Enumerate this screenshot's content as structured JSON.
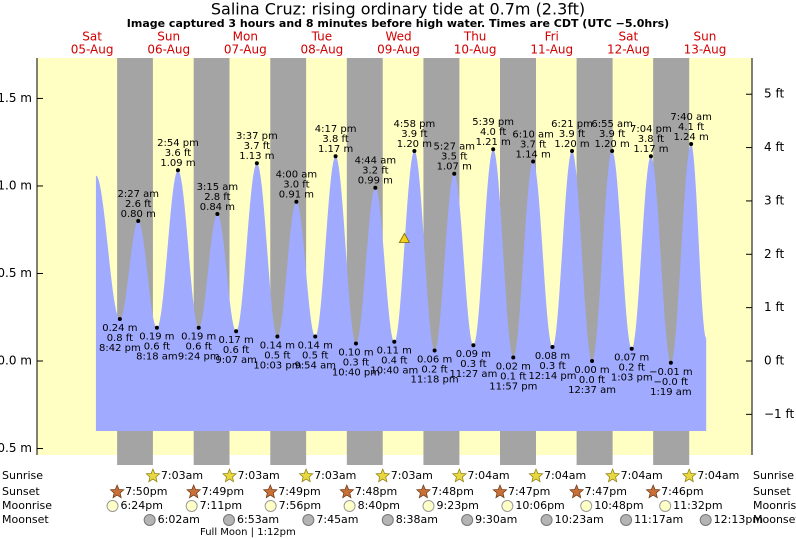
{
  "chart_data": {
    "type": "tide",
    "title": "Salina Cruz: rising  ordinary tide at 0.7m (2.3ft)",
    "subtitle": "Image captured 3 hours and 8 minutes before high water. Times are CDT (UTC −5.0hrs)",
    "days": [
      {
        "weekday": "Sat",
        "date": "05-Aug"
      },
      {
        "weekday": "Sun",
        "date": "06-Aug"
      },
      {
        "weekday": "Mon",
        "date": "07-Aug"
      },
      {
        "weekday": "Tue",
        "date": "08-Aug"
      },
      {
        "weekday": "Wed",
        "date": "09-Aug"
      },
      {
        "weekday": "Thu",
        "date": "10-Aug"
      },
      {
        "weekday": "Fri",
        "date": "11-Aug"
      },
      {
        "weekday": "Sat",
        "date": "12-Aug"
      },
      {
        "weekday": "Sun",
        "date": "13-Aug"
      }
    ],
    "ylim": [
      -0.537,
      1.731
    ],
    "yticks": [
      {
        "value": 1.5,
        "label": "1.5 m"
      },
      {
        "value": 1.0,
        "label": "1.0 m"
      },
      {
        "value": 0.5,
        "label": "0.5 m"
      },
      {
        "value": 0.0,
        "label": "0.0 m"
      },
      {
        "value": -0.5,
        "label": "−0.5 m"
      }
    ],
    "y2lim": [
      -1.762,
      5.679
    ],
    "y2ticks": [
      {
        "value": 5,
        "label": "5 ft"
      },
      {
        "value": 4,
        "label": "4 ft"
      },
      {
        "value": 3,
        "label": "3 ft"
      },
      {
        "value": 2,
        "label": "2 ft"
      },
      {
        "value": 1,
        "label": "1 ft"
      },
      {
        "value": 0,
        "label": "0 ft"
      },
      {
        "value": -1,
        "label": "−1 ft"
      }
    ],
    "color": "#a0aaff",
    "night_color": "#a4a4a4",
    "day_color": "#ffffc4",
    "events": [
      {
        "day": 0,
        "hour": 13.2,
        "m": 1.06
      },
      {
        "kind": "low",
        "day": 0,
        "time": "8:42 pm",
        "m": 0.24,
        "m_label": "0.24 m",
        "ft": "0.8 ft"
      },
      {
        "kind": "high",
        "day": 1,
        "time": "2:27 am",
        "m": 0.8,
        "m_label": "0.80 m",
        "ft": "2.6 ft"
      },
      {
        "kind": "low",
        "day": 1,
        "time": "8:18 am",
        "m": 0.19,
        "m_label": "0.19 m",
        "ft": "0.6 ft"
      },
      {
        "kind": "high",
        "day": 1,
        "time": "2:54 pm",
        "m": 1.09,
        "m_label": "1.09 m",
        "ft": "3.6 ft"
      },
      {
        "kind": "low",
        "day": 1,
        "time": "9:24 pm",
        "m": 0.19,
        "m_label": "0.19 m",
        "ft": "0.6 ft"
      },
      {
        "kind": "high",
        "day": 2,
        "time": "3:15 am",
        "m": 0.84,
        "m_label": "0.84 m",
        "ft": "2.8 ft"
      },
      {
        "kind": "low",
        "day": 2,
        "time": "9:07 am",
        "m": 0.17,
        "m_label": "0.17 m",
        "ft": "0.6 ft"
      },
      {
        "kind": "high",
        "day": 2,
        "time": "3:37 pm",
        "m": 1.13,
        "m_label": "1.13 m",
        "ft": "3.7 ft"
      },
      {
        "kind": "low",
        "day": 2,
        "time": "10:03 pm",
        "m": 0.14,
        "m_label": "0.14 m",
        "ft": "0.5 ft"
      },
      {
        "kind": "high",
        "day": 3,
        "time": "4:00 am",
        "m": 0.91,
        "m_label": "0.91 m",
        "ft": "3.0 ft"
      },
      {
        "kind": "low",
        "day": 3,
        "time": "9:54 am",
        "m": 0.14,
        "m_label": "0.14 m",
        "ft": "0.5 ft"
      },
      {
        "kind": "high",
        "day": 3,
        "time": "4:17 pm",
        "m": 1.17,
        "m_label": "1.17 m",
        "ft": "3.8 ft"
      },
      {
        "kind": "low",
        "day": 3,
        "time": "10:40 pm",
        "m": 0.1,
        "m_label": "0.10 m",
        "ft": "0.3 ft"
      },
      {
        "kind": "high",
        "day": 4,
        "time": "4:44 am",
        "m": 0.99,
        "m_label": "0.99 m",
        "ft": "3.2 ft"
      },
      {
        "kind": "low",
        "day": 4,
        "time": "10:40 am",
        "m": 0.11,
        "m_label": "0.11 m",
        "ft": "0.4 ft"
      },
      {
        "kind": "high",
        "day": 4,
        "time": "4:58 pm",
        "m": 1.2,
        "m_label": "1.20 m",
        "ft": "3.9 ft"
      },
      {
        "kind": "low",
        "day": 4,
        "time": "11:18 pm",
        "m": 0.06,
        "m_label": "0.06 m",
        "ft": "0.2 ft"
      },
      {
        "kind": "high",
        "day": 5,
        "time": "5:27 am",
        "m": 1.07,
        "m_label": "1.07 m",
        "ft": "3.5 ft"
      },
      {
        "kind": "low",
        "day": 5,
        "time": "11:27 am",
        "m": 0.09,
        "m_label": "0.09 m",
        "ft": "0.3 ft"
      },
      {
        "kind": "high",
        "day": 5,
        "time": "5:39 pm",
        "m": 1.21,
        "m_label": "1.21 m",
        "ft": "4.0 ft"
      },
      {
        "kind": "low",
        "day": 5,
        "time": "11:57 pm",
        "m": 0.02,
        "m_label": "0.02 m",
        "ft": "0.1 ft"
      },
      {
        "kind": "high",
        "day": 6,
        "time": "6:10 am",
        "m": 1.14,
        "m_label": "1.14 m",
        "ft": "3.7 ft"
      },
      {
        "kind": "low",
        "day": 6,
        "time": "12:14 pm",
        "m": 0.08,
        "m_label": "0.08 m",
        "ft": "0.3 ft"
      },
      {
        "kind": "high",
        "day": 6,
        "time": "6:21 pm",
        "m": 1.2,
        "m_label": "1.20 m",
        "ft": "3.9 ft"
      },
      {
        "kind": "low",
        "day": 7,
        "time": "12:37 am",
        "m": 0.0,
        "m_label": "0.00 m",
        "ft": "0.0 ft"
      },
      {
        "kind": "high",
        "day": 7,
        "time": "6:55 am",
        "m": 1.2,
        "m_label": "1.20 m",
        "ft": "3.9 ft"
      },
      {
        "kind": "low",
        "day": 7,
        "time": "1:03 pm",
        "m": 0.07,
        "m_label": "0.07 m",
        "ft": "0.2 ft"
      },
      {
        "kind": "high",
        "day": 7,
        "time": "7:04 pm",
        "m": 1.17,
        "m_label": "1.17 m",
        "ft": "3.8 ft"
      },
      {
        "kind": "low",
        "day": 8,
        "time": "1:19 am",
        "m": -0.01,
        "m_label": "−0.01 m",
        "ft": "−0.0 ft"
      },
      {
        "kind": "high",
        "day": 8,
        "time": "7:40 am",
        "m": 1.24,
        "m_label": "1.24 m",
        "ft": "4.1 ft"
      },
      {
        "day": 8,
        "hour": 12.4,
        "m": 0.13
      }
    ],
    "now": {
      "day": 4,
      "hour": 13.83,
      "m": 0.7,
      "color": "#f2d21a"
    },
    "sun_moon": [
      {
        "name": "Sunrise",
        "icon": "sunrise",
        "events": [
          {
            "day": 1,
            "time": "7:03am"
          },
          {
            "day": 2,
            "time": "7:03am"
          },
          {
            "day": 3,
            "time": "7:03am"
          },
          {
            "day": 4,
            "time": "7:03am"
          },
          {
            "day": 5,
            "time": "7:04am"
          },
          {
            "day": 6,
            "time": "7:04am"
          },
          {
            "day": 7,
            "time": "7:04am"
          },
          {
            "day": 8,
            "time": "7:04am"
          }
        ]
      },
      {
        "name": "Sunset",
        "icon": "sunset",
        "events": [
          {
            "day": 0,
            "time": "7:50pm"
          },
          {
            "day": 1,
            "time": "7:49pm"
          },
          {
            "day": 2,
            "time": "7:49pm"
          },
          {
            "day": 3,
            "time": "7:48pm"
          },
          {
            "day": 4,
            "time": "7:48pm"
          },
          {
            "day": 5,
            "time": "7:47pm"
          },
          {
            "day": 6,
            "time": "7:47pm"
          },
          {
            "day": 7,
            "time": "7:46pm"
          }
        ]
      },
      {
        "name": "Moonrise",
        "icon": "moonrise",
        "events": [
          {
            "day": 0,
            "time": "6:24pm"
          },
          {
            "day": 1,
            "time": "7:11pm"
          },
          {
            "day": 2,
            "time": "7:56pm"
          },
          {
            "day": 3,
            "time": "8:40pm"
          },
          {
            "day": 4,
            "time": "9:23pm"
          },
          {
            "day": 5,
            "time": "10:06pm"
          },
          {
            "day": 6,
            "time": "10:48pm"
          },
          {
            "day": 7,
            "time": "11:32pm"
          }
        ]
      },
      {
        "name": "Moonset",
        "icon": "moonset",
        "events": [
          {
            "day": 1,
            "time": "6:02am"
          },
          {
            "day": 2,
            "time": "6:53am"
          },
          {
            "day": 3,
            "time": "7:45am"
          },
          {
            "day": 4,
            "time": "8:38am"
          },
          {
            "day": 5,
            "time": "9:30am"
          },
          {
            "day": 6,
            "time": "10:23am"
          },
          {
            "day": 7,
            "time": "11:17am"
          },
          {
            "day": 8,
            "time": "12:13pm"
          }
        ]
      }
    ],
    "full_moon": "Full Moon | 1:12pm"
  }
}
